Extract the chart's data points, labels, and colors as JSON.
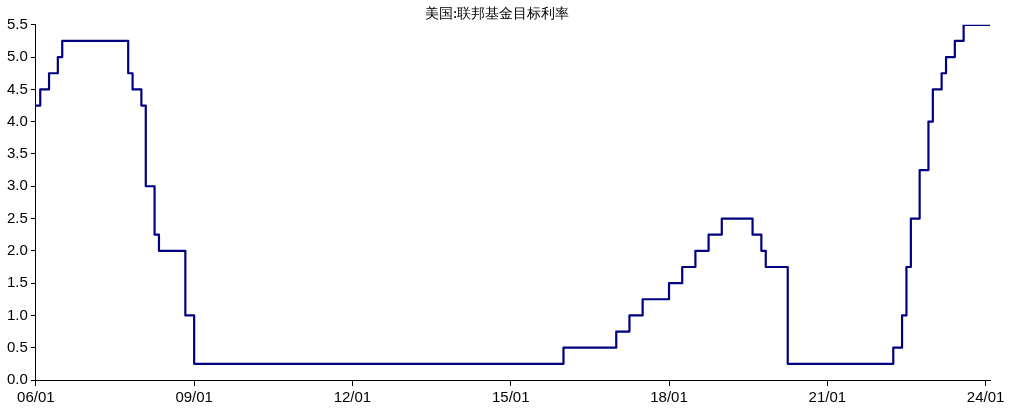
{
  "chart_data": {
    "type": "step",
    "title": "美国:联邦基金目标利率",
    "categories": [
      "06/01",
      null,
      null,
      null,
      null,
      null,
      null,
      null,
      null,
      null,
      null,
      null,
      null,
      null,
      null,
      null,
      null,
      null,
      null,
      null,
      null,
      null,
      null,
      null,
      null,
      null,
      null,
      null,
      null,
      null,
      null,
      null,
      null,
      null,
      null,
      null,
      "09/01",
      null,
      null,
      null,
      null,
      null,
      null,
      null,
      null,
      null,
      null,
      null,
      null,
      null,
      null,
      null,
      null,
      null,
      null,
      null,
      null,
      null,
      null,
      null,
      null,
      null,
      null,
      null,
      null,
      null,
      null,
      null,
      null,
      null,
      null,
      null,
      "12/01",
      null,
      null,
      null,
      null,
      null,
      null,
      null,
      null,
      null,
      null,
      null,
      null,
      null,
      null,
      null,
      null,
      null,
      null,
      null,
      null,
      null,
      null,
      null,
      null,
      null,
      null,
      null,
      null,
      null,
      null,
      null,
      null,
      null,
      null,
      null,
      "15/01",
      null,
      null,
      null,
      null,
      null,
      null,
      null,
      null,
      null,
      null,
      null,
      null,
      null,
      null,
      null,
      null,
      null,
      null,
      null,
      null,
      null,
      null,
      null,
      null,
      null,
      null,
      null,
      null,
      null,
      null,
      null,
      null,
      null,
      null,
      null,
      "18/01",
      null,
      null,
      null,
      null,
      null,
      null,
      null,
      null,
      null,
      null,
      null,
      null,
      null,
      null,
      null,
      null,
      null,
      null,
      null,
      null,
      null,
      null,
      null,
      null,
      null,
      null,
      null,
      null,
      null,
      null,
      null,
      null,
      null,
      null,
      null,
      "21/01",
      null,
      null,
      null,
      null,
      null,
      null,
      null,
      null,
      null,
      null,
      null,
      null,
      null,
      null,
      null,
      null,
      null,
      null,
      null,
      null,
      null,
      null,
      null,
      null,
      null,
      null,
      null,
      null,
      null,
      null,
      null,
      null,
      null,
      null,
      null,
      "24/01",
      null
    ],
    "series": [
      {
        "color": "#000080",
        "values": [
          4.25,
          4.5,
          4.5,
          4.75,
          4.75,
          5.0,
          5.25,
          5.25,
          5.25,
          5.25,
          5.25,
          5.25,
          5.25,
          5.25,
          5.25,
          5.25,
          5.25,
          5.25,
          5.25,
          5.25,
          5.25,
          4.75,
          4.5,
          4.5,
          4.25,
          3.0,
          3.0,
          2.25,
          2.0,
          2.0,
          2.0,
          2.0,
          2.0,
          2.0,
          1.0,
          1.0,
          0.25,
          0.25,
          0.25,
          0.25,
          0.25,
          0.25,
          0.25,
          0.25,
          0.25,
          0.25,
          0.25,
          0.25,
          0.25,
          0.25,
          0.25,
          0.25,
          0.25,
          0.25,
          0.25,
          0.25,
          0.25,
          0.25,
          0.25,
          0.25,
          0.25,
          0.25,
          0.25,
          0.25,
          0.25,
          0.25,
          0.25,
          0.25,
          0.25,
          0.25,
          0.25,
          0.25,
          0.25,
          0.25,
          0.25,
          0.25,
          0.25,
          0.25,
          0.25,
          0.25,
          0.25,
          0.25,
          0.25,
          0.25,
          0.25,
          0.25,
          0.25,
          0.25,
          0.25,
          0.25,
          0.25,
          0.25,
          0.25,
          0.25,
          0.25,
          0.25,
          0.25,
          0.25,
          0.25,
          0.25,
          0.25,
          0.25,
          0.25,
          0.25,
          0.25,
          0.25,
          0.25,
          0.25,
          0.25,
          0.25,
          0.25,
          0.25,
          0.25,
          0.25,
          0.25,
          0.25,
          0.25,
          0.25,
          0.25,
          0.25,
          0.5,
          0.5,
          0.5,
          0.5,
          0.5,
          0.5,
          0.5,
          0.5,
          0.5,
          0.5,
          0.5,
          0.5,
          0.75,
          0.75,
          0.75,
          1.0,
          1.0,
          1.0,
          1.25,
          1.25,
          1.25,
          1.25,
          1.25,
          1.25,
          1.5,
          1.5,
          1.5,
          1.75,
          1.75,
          1.75,
          2.0,
          2.0,
          2.0,
          2.25,
          2.25,
          2.25,
          2.5,
          2.5,
          2.5,
          2.5,
          2.5,
          2.5,
          2.5,
          2.25,
          2.25,
          2.0,
          1.75,
          1.75,
          1.75,
          1.75,
          1.75,
          0.25,
          0.25,
          0.25,
          0.25,
          0.25,
          0.25,
          0.25,
          0.25,
          0.25,
          0.25,
          0.25,
          0.25,
          0.25,
          0.25,
          0.25,
          0.25,
          0.25,
          0.25,
          0.25,
          0.25,
          0.25,
          0.25,
          0.25,
          0.25,
          0.5,
          0.5,
          1.0,
          1.75,
          2.5,
          2.5,
          3.25,
          3.25,
          4.0,
          4.5,
          4.5,
          4.75,
          5.0,
          5.0,
          5.25,
          5.25,
          5.5,
          5.5,
          5.5,
          5.5,
          5.5,
          5.5,
          5.5
        ]
      }
    ],
    "ylim": [
      0,
      5.5
    ],
    "yticks": [
      {
        "value": 0,
        "label": "0.0"
      },
      0.5,
      {
        "value": 1,
        "label": "1.0"
      },
      1.5,
      {
        "value": 2,
        "label": "2.0"
      },
      2.5,
      {
        "value": 3,
        "label": "3.0"
      },
      3.5,
      {
        "value": 4,
        "label": "4.0"
      },
      4.5,
      {
        "value": 5,
        "label": "5.0"
      },
      5.5
    ],
    "grid": false,
    "legend": false,
    "marker": "none",
    "line_style": "solid"
  }
}
